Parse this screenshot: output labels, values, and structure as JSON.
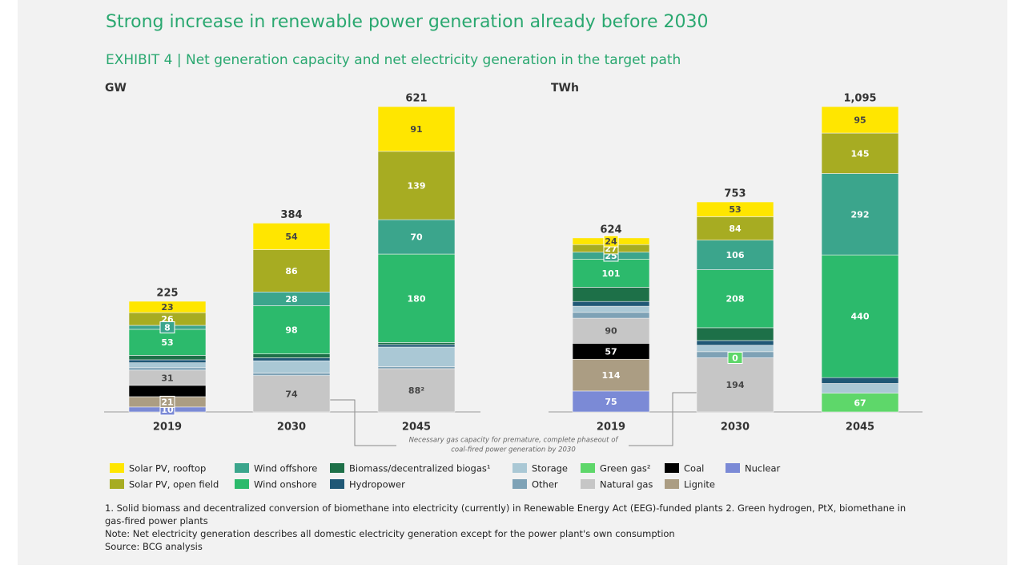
{
  "title": "Strong increase in renewable power generation already before 2030",
  "subtitle": "EXHIBIT 4 | Net generation capacity and net electricity generation in the target path",
  "annotation": [
    "Necessary gas capacity for premature, complete phaseout of",
    "coal-fired power generation by 2030"
  ],
  "footnotes": [
    "1. Solid biomass and decentralized conversion of biomethane into electricity (currently) in Renewable Energy Act (EEG)-funded plants  2. Green hydrogen, PtX, biomethane in gas-fired power plants",
    "Note: Net electricity generation describes all domestic electricity generation except for the power plant's own consumption",
    "Source: BCG analysis"
  ],
  "chart_data": [
    {
      "type": "stacked_bar",
      "y_label": "GW",
      "categories": [
        "2019",
        "2030",
        "2045"
      ],
      "totals": [
        225,
        384,
        621
      ],
      "series": [
        {
          "name": "Solar PV, rooftop",
          "color": "#ffe600",
          "values": [
            23,
            54,
            91
          ],
          "value_labels": [
            "23",
            "54",
            "91"
          ]
        },
        {
          "name": "Solar PV, open field",
          "color": "#a7ac22",
          "values": [
            26,
            86,
            139
          ],
          "value_labels": [
            "26",
            "86",
            "139"
          ]
        },
        {
          "name": "Wind offshore",
          "color": "#3ba58c",
          "values": [
            8,
            28,
            70
          ],
          "value_labels": [
            "8",
            "28",
            "70"
          ]
        },
        {
          "name": "Wind onshore",
          "color": "#2cba6c",
          "values": [
            53,
            98,
            180
          ],
          "value_labels": [
            "53",
            "98",
            "180"
          ]
        },
        {
          "name": "Biomass/decentralized biogas¹",
          "color": "#1d7048",
          "values": [
            9,
            8,
            4
          ]
        },
        {
          "name": "Hydropower",
          "color": "#1f5876",
          "values": [
            6,
            6,
            5
          ]
        },
        {
          "name": "Storage",
          "color": "#aac8d5",
          "values": [
            10,
            25,
            40
          ]
        },
        {
          "name": "Other",
          "color": "#7ea2b6",
          "values": [
            5,
            5,
            4
          ]
        },
        {
          "name": "Green gas²",
          "color": "#5ed76a",
          "values": [
            0,
            0,
            0
          ]
        },
        {
          "name": "Natural gas",
          "color": "#c6c6c6",
          "values": [
            31,
            74,
            88
          ],
          "value_labels": [
            "31",
            "74",
            "88²"
          ]
        },
        {
          "name": "Coal",
          "color": "#000000",
          "values": [
            23,
            0,
            0
          ]
        },
        {
          "name": "Lignite",
          "color": "#ab9d83",
          "values": [
            21,
            0,
            0
          ],
          "value_labels": [
            "21",
            null,
            null
          ]
        },
        {
          "name": "Nuclear",
          "color": "#7b8ad6",
          "values": [
            10,
            0,
            0
          ],
          "value_labels": [
            "10",
            null,
            null
          ]
        }
      ]
    },
    {
      "type": "stacked_bar",
      "y_label": "TWh",
      "categories": [
        "2019",
        "2030",
        "2045"
      ],
      "totals": [
        624,
        753,
        1095
      ],
      "total_labels": [
        "624",
        "753",
        "1,095"
      ],
      "series": [
        {
          "name": "Solar PV, rooftop",
          "color": "#ffe600",
          "values": [
            24,
            53,
            95
          ],
          "value_labels": [
            "24",
            "53",
            "95"
          ]
        },
        {
          "name": "Solar PV, open field",
          "color": "#a7ac22",
          "values": [
            27,
            84,
            145
          ],
          "value_labels": [
            "27",
            "84",
            "145"
          ]
        },
        {
          "name": "Wind offshore",
          "color": "#3ba58c",
          "values": [
            25,
            106,
            292
          ],
          "value_labels": [
            "25",
            "106",
            "292"
          ]
        },
        {
          "name": "Wind onshore",
          "color": "#2cba6c",
          "values": [
            101,
            208,
            440
          ],
          "value_labels": [
            "101",
            "208",
            "440"
          ]
        },
        {
          "name": "Biomass/decentralized biogas¹",
          "color": "#1d7048",
          "values": [
            51,
            46,
            0
          ]
        },
        {
          "name": "Hydropower",
          "color": "#1f5876",
          "values": [
            17,
            17,
            21
          ]
        },
        {
          "name": "Storage",
          "color": "#aac8d5",
          "values": [
            22,
            23,
            35
          ]
        },
        {
          "name": "Other",
          "color": "#7ea2b6",
          "values": [
            21,
            22,
            0
          ]
        },
        {
          "name": "Green gas²",
          "color": "#5ed76a",
          "values": [
            0,
            0,
            67
          ],
          "value_labels": [
            null,
            "0",
            "67"
          ]
        },
        {
          "name": "Natural gas",
          "color": "#c6c6c6",
          "values": [
            90,
            194,
            0
          ],
          "value_labels": [
            "90",
            "194",
            null
          ]
        },
        {
          "name": "Coal",
          "color": "#000000",
          "values": [
            57,
            0,
            0
          ],
          "value_labels": [
            "57",
            null,
            null
          ]
        },
        {
          "name": "Lignite",
          "color": "#ab9d83",
          "values": [
            114,
            0,
            0
          ],
          "value_labels": [
            "114",
            null,
            null
          ]
        },
        {
          "name": "Nuclear",
          "color": "#7b8ad6",
          "values": [
            75,
            0,
            0
          ],
          "value_labels": [
            "75",
            null,
            null
          ]
        }
      ]
    }
  ]
}
